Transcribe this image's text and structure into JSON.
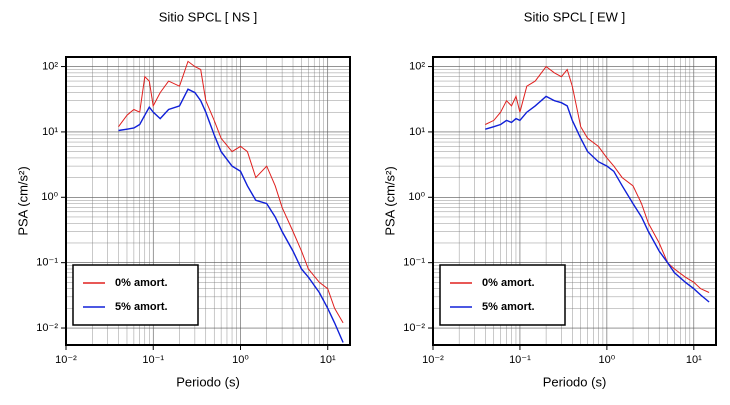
{
  "chart_data": [
    {
      "type": "line",
      "title": "Sitio SPCL [ NS ]",
      "x_label": "Periodo (s)",
      "y_label": "PSA (cm/s²)",
      "xscale": "log",
      "yscale": "log",
      "grid": true,
      "legend": "lower left",
      "xlim": [
        0.01,
        18
      ],
      "ylim": [
        0.0055,
        140
      ],
      "xticks": [
        {
          "value": 0.01,
          "label": "10⁻²"
        },
        {
          "value": 0.1,
          "label": "10⁻¹"
        },
        {
          "value": 1,
          "label": "10⁰"
        },
        {
          "value": 10,
          "label": "10¹"
        }
      ],
      "yticks": [
        {
          "value": 0.01,
          "label": "10⁻²"
        },
        {
          "value": 0.1,
          "label": "10⁻¹"
        },
        {
          "value": 1,
          "label": "10⁰"
        },
        {
          "value": 10,
          "label": "10¹"
        },
        {
          "value": 100,
          "label": "10²"
        }
      ],
      "x": [
        0.04,
        0.05,
        0.06,
        0.07,
        0.08,
        0.09,
        0.1,
        0.12,
        0.15,
        0.2,
        0.25,
        0.3,
        0.35,
        0.4,
        0.5,
        0.6,
        0.8,
        1,
        1.2,
        1.5,
        2,
        2.5,
        3,
        4,
        5,
        6,
        8,
        10,
        12,
        15
      ],
      "series": [
        {
          "name": "0% amort.",
          "color": "#e0201e",
          "values": [
            12,
            18,
            22,
            20,
            70,
            60,
            25,
            40,
            60,
            50,
            120,
            100,
            90,
            30,
            15,
            8,
            5,
            6,
            5,
            2,
            3,
            1.5,
            0.7,
            0.3,
            0.15,
            0.08,
            0.05,
            0.04,
            0.02,
            0.012
          ]
        },
        {
          "name": "5% amort.",
          "color": "#1020d8",
          "values": [
            10.5,
            11,
            11.5,
            13,
            18,
            24,
            20,
            16,
            22,
            25,
            45,
            40,
            30,
            20,
            9,
            5,
            3,
            2.5,
            1.5,
            0.9,
            0.8,
            0.5,
            0.3,
            0.15,
            0.08,
            0.06,
            0.035,
            0.02,
            0.012,
            0.006
          ]
        }
      ]
    },
    {
      "type": "line",
      "title": "Sitio SPCL [ EW ]",
      "x_label": "Periodo (s)",
      "y_label": "PSA (cm/s²)",
      "xscale": "log",
      "yscale": "log",
      "grid": true,
      "legend": "lower left",
      "xlim": [
        0.01,
        18
      ],
      "ylim": [
        0.0055,
        140
      ],
      "xticks": [
        {
          "value": 0.01,
          "label": "10⁻²"
        },
        {
          "value": 0.1,
          "label": "10⁻¹"
        },
        {
          "value": 1,
          "label": "10⁰"
        },
        {
          "value": 10,
          "label": "10¹"
        }
      ],
      "yticks": [
        {
          "value": 0.01,
          "label": "10⁻²"
        },
        {
          "value": 0.1,
          "label": "10⁻¹"
        },
        {
          "value": 1,
          "label": "10⁰"
        },
        {
          "value": 10,
          "label": "10¹"
        },
        {
          "value": 100,
          "label": "10²"
        }
      ],
      "x": [
        0.04,
        0.05,
        0.06,
        0.07,
        0.08,
        0.09,
        0.1,
        0.12,
        0.15,
        0.2,
        0.25,
        0.3,
        0.35,
        0.4,
        0.5,
        0.6,
        0.8,
        1,
        1.2,
        1.5,
        2,
        2.5,
        3,
        4,
        5,
        6,
        8,
        10,
        12,
        15
      ],
      "series": [
        {
          "name": "0% amort.",
          "color": "#e0201e",
          "values": [
            13,
            15,
            20,
            30,
            25,
            35,
            20,
            50,
            60,
            100,
            80,
            70,
            90,
            50,
            12,
            8,
            6,
            4,
            3,
            2,
            1.5,
            0.8,
            0.4,
            0.2,
            0.1,
            0.08,
            0.06,
            0.05,
            0.04,
            0.035
          ]
        },
        {
          "name": "5% amort.",
          "color": "#1020d8",
          "values": [
            11,
            12,
            13,
            15,
            14,
            16,
            15,
            20,
            25,
            35,
            30,
            28,
            25,
            15,
            8,
            5,
            3.5,
            3,
            2.5,
            1.5,
            0.8,
            0.5,
            0.3,
            0.15,
            0.1,
            0.07,
            0.05,
            0.04,
            0.032,
            0.025
          ]
        }
      ]
    }
  ]
}
